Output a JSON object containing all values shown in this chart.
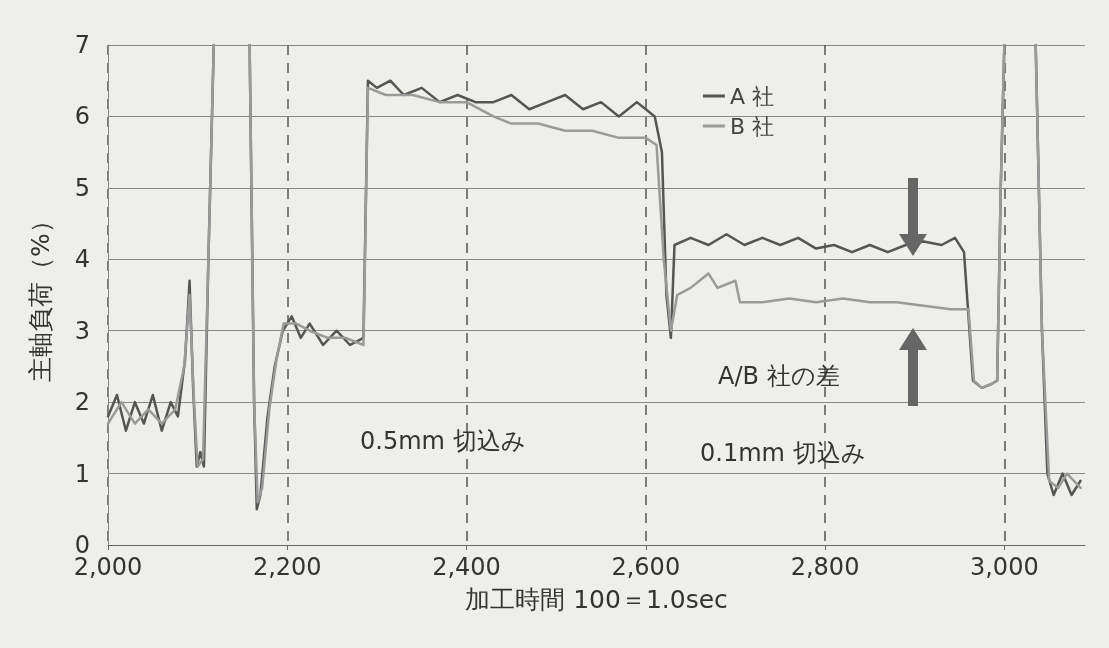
{
  "chart_data": {
    "type": "line",
    "xlabel": "加工時間 100＝1.0sec",
    "ylabel": "主軸負荷（%）",
    "xlim": [
      2000,
      3090
    ],
    "ylim": [
      0,
      7
    ],
    "xticks": [
      {
        "value": 2000,
        "label": "2,000"
      },
      {
        "value": 2200,
        "label": "2,200"
      },
      {
        "value": 2400,
        "label": "2,400"
      },
      {
        "value": 2600,
        "label": "2,600"
      },
      {
        "value": 2800,
        "label": "2,800"
      },
      {
        "value": 3000,
        "label": "3,000"
      }
    ],
    "yticks": [
      0,
      1,
      2,
      3,
      4,
      5,
      6,
      7
    ],
    "grid": true,
    "legend": "top right",
    "marker": "none",
    "line_style": "solid",
    "annotations": [
      "0.5mm 切込み",
      "0.1mm 切込み",
      "A/B 社の差"
    ],
    "series": [
      {
        "name": "A 社",
        "color": "#555555",
        "x": [
          2000,
          2010,
          2020,
          2030,
          2040,
          2050,
          2060,
          2070,
          2078,
          2086,
          2091,
          2095,
          2099,
          2103,
          2107,
          2112,
          2118,
          2140,
          2158,
          2163,
          2166,
          2170,
          2178,
          2186,
          2195,
          2205,
          2215,
          2225,
          2240,
          2255,
          2270,
          2285,
          2290,
          2300,
          2315,
          2330,
          2350,
          2370,
          2390,
          2410,
          2430,
          2450,
          2470,
          2490,
          2510,
          2530,
          2550,
          2570,
          2590,
          2610,
          2618,
          2623,
          2628,
          2632,
          2650,
          2670,
          2690,
          2710,
          2730,
          2750,
          2770,
          2790,
          2810,
          2830,
          2850,
          2870,
          2890,
          2910,
          2930,
          2945,
          2955,
          2965,
          2975,
          2985,
          2992,
          2996,
          3000,
          3015,
          3035,
          3042,
          3048,
          3055,
          3065,
          3075,
          3085
        ],
        "values": [
          1.8,
          2.1,
          1.6,
          2.0,
          1.7,
          2.1,
          1.6,
          2.0,
          1.8,
          2.6,
          3.7,
          2.2,
          1.1,
          1.3,
          1.1,
          4,
          7,
          null,
          7,
          2.0,
          0.5,
          0.7,
          1.8,
          2.5,
          3.0,
          3.2,
          2.9,
          3.1,
          2.8,
          3.0,
          2.8,
          2.9,
          6.5,
          6.4,
          6.5,
          6.3,
          6.4,
          6.2,
          6.3,
          6.2,
          6.2,
          6.3,
          6.1,
          6.2,
          6.3,
          6.1,
          6.2,
          6.0,
          6.2,
          6.0,
          5.5,
          3.5,
          2.9,
          4.2,
          4.3,
          4.2,
          4.35,
          4.2,
          4.3,
          4.2,
          4.3,
          4.15,
          4.2,
          4.1,
          4.2,
          4.1,
          4.2,
          4.25,
          4.2,
          4.3,
          4.1,
          2.3,
          2.2,
          2.25,
          2.3,
          5,
          7,
          null,
          7,
          3,
          1.0,
          0.7,
          1.0,
          0.7,
          0.9
        ]
      },
      {
        "name": "B 社",
        "color": "#9a9a9a",
        "x": [
          2000,
          2015,
          2030,
          2045,
          2060,
          2075,
          2085,
          2091,
          2096,
          2100,
          2106,
          2112,
          2118,
          2140,
          2158,
          2163,
          2167,
          2172,
          2180,
          2188,
          2196,
          2210,
          2225,
          2245,
          2265,
          2285,
          2290,
          2310,
          2340,
          2370,
          2400,
          2430,
          2450,
          2480,
          2510,
          2540,
          2570,
          2600,
          2612,
          2620,
          2628,
          2635,
          2650,
          2670,
          2680,
          2700,
          2705,
          2730,
          2760,
          2790,
          2820,
          2850,
          2880,
          2910,
          2940,
          2960,
          2966,
          2975,
          2985,
          2992,
          2996,
          3000,
          3015,
          3035,
          3042,
          3050,
          3060,
          3070,
          3085
        ],
        "values": [
          1.7,
          2.0,
          1.7,
          1.9,
          1.7,
          1.9,
          2.5,
          3.5,
          2.0,
          1.1,
          1.2,
          4,
          7,
          null,
          7,
          2.0,
          0.6,
          0.8,
          1.9,
          2.6,
          3.1,
          3.1,
          3.0,
          2.9,
          2.9,
          2.8,
          6.4,
          6.3,
          6.3,
          6.2,
          6.2,
          6.0,
          5.9,
          5.9,
          5.8,
          5.8,
          5.7,
          5.7,
          5.6,
          4.0,
          3.0,
          3.5,
          3.6,
          3.8,
          3.6,
          3.7,
          3.4,
          3.4,
          3.45,
          3.4,
          3.45,
          3.4,
          3.4,
          3.35,
          3.3,
          3.3,
          2.3,
          2.2,
          2.25,
          2.3,
          5,
          7,
          null,
          7,
          3,
          0.9,
          0.8,
          1.0,
          0.8
        ]
      }
    ]
  }
}
